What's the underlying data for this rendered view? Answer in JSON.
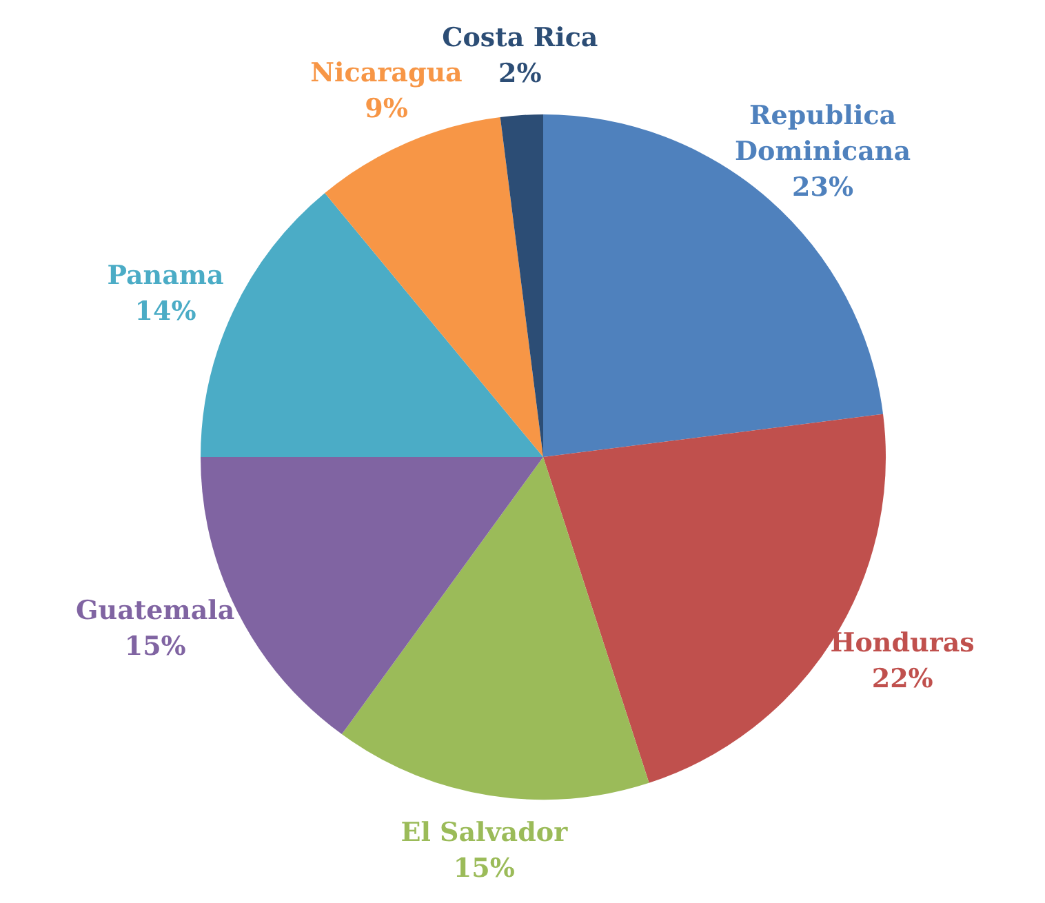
{
  "chart_data": {
    "type": "pie",
    "categories": [
      "Republica Dominicana",
      "Honduras",
      "El Salvador",
      "Guatemala",
      "Panama",
      "Nicaragua",
      "Costa Rica"
    ],
    "values": [
      23,
      22,
      15,
      15,
      14,
      9,
      2
    ],
    "colors": [
      "#4f81bd",
      "#c0504d",
      "#9bbb59",
      "#8064a2",
      "#4bacc6",
      "#f79646",
      "#2c4d75"
    ],
    "value_labels": [
      "23%",
      "22%",
      "15%",
      "15%",
      "14%",
      "9%",
      "2%"
    ],
    "legend": false
  }
}
